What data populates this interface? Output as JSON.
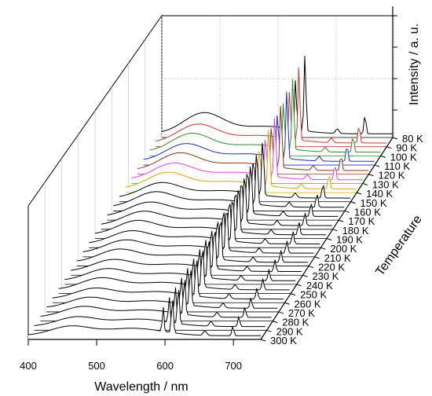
{
  "chart_data": {
    "type": "line",
    "subtype": "waterfall-3d",
    "xlabel": "Wavelength / nm",
    "ylabel": "Temperature",
    "zlabel": "Intensity / a. u.",
    "x_ticks": [
      400,
      500,
      600,
      700
    ],
    "xlim": [
      400,
      740
    ],
    "grid": true,
    "series": [
      {
        "name": "80 K",
        "color": "#000000",
        "values": [
          0.05,
          0.18,
          0.45,
          0.92,
          0.6
        ]
      },
      {
        "name": "90 K",
        "color": "#c0392b",
        "values": [
          0.05,
          0.16,
          0.4,
          0.9,
          0.55
        ]
      },
      {
        "name": "100 K",
        "color": "#2e8b2e",
        "values": [
          0.05,
          0.16,
          0.38,
          0.88,
          0.52
        ]
      },
      {
        "name": "110 K",
        "color": "#1a2fbf",
        "values": [
          0.05,
          0.15,
          0.36,
          0.85,
          0.5
        ]
      },
      {
        "name": "120 K",
        "color": "#7b3a1a",
        "values": [
          0.05,
          0.15,
          0.34,
          0.8,
          0.48
        ]
      },
      {
        "name": "130 K",
        "color": "#e040e0",
        "values": [
          0.05,
          0.14,
          0.33,
          0.78,
          0.47
        ]
      },
      {
        "name": "140 K",
        "color": "#d9a100",
        "values": [
          0.05,
          0.14,
          0.32,
          0.75,
          0.46
        ]
      },
      {
        "name": "150 K",
        "color": "#000000",
        "values": [
          0.05,
          0.13,
          0.3,
          0.72,
          0.44
        ]
      },
      {
        "name": "160 K",
        "color": "#000000",
        "values": [
          0.05,
          0.13,
          0.29,
          0.7,
          0.43
        ]
      },
      {
        "name": "170 K",
        "color": "#000000",
        "values": [
          0.05,
          0.12,
          0.28,
          0.68,
          0.42
        ]
      },
      {
        "name": "180 K",
        "color": "#000000",
        "values": [
          0.05,
          0.12,
          0.27,
          0.66,
          0.41
        ]
      },
      {
        "name": "190 K",
        "color": "#000000",
        "values": [
          0.05,
          0.12,
          0.26,
          0.64,
          0.4
        ]
      },
      {
        "name": "200 K",
        "color": "#000000",
        "values": [
          0.05,
          0.11,
          0.25,
          0.62,
          0.39
        ]
      },
      {
        "name": "210 K",
        "color": "#000000",
        "values": [
          0.05,
          0.11,
          0.24,
          0.6,
          0.38
        ]
      },
      {
        "name": "220 K",
        "color": "#000000",
        "values": [
          0.05,
          0.11,
          0.23,
          0.58,
          0.37
        ]
      },
      {
        "name": "230 K",
        "color": "#000000",
        "values": [
          0.05,
          0.1,
          0.22,
          0.56,
          0.36
        ]
      },
      {
        "name": "240 K",
        "color": "#000000",
        "values": [
          0.05,
          0.1,
          0.21,
          0.54,
          0.35
        ]
      },
      {
        "name": "250 K",
        "color": "#000000",
        "values": [
          0.05,
          0.1,
          0.2,
          0.52,
          0.34
        ]
      },
      {
        "name": "260 K",
        "color": "#000000",
        "values": [
          0.05,
          0.09,
          0.19,
          0.5,
          0.33
        ]
      },
      {
        "name": "270 K",
        "color": "#000000",
        "values": [
          0.05,
          0.09,
          0.18,
          0.48,
          0.32
        ]
      },
      {
        "name": "280 K",
        "color": "#000000",
        "values": [
          0.05,
          0.09,
          0.17,
          0.46,
          0.31
        ]
      },
      {
        "name": "290 K",
        "color": "#000000",
        "values": [
          0.05,
          0.08,
          0.16,
          0.44,
          0.3
        ]
      },
      {
        "name": "300 K",
        "color": "#000000",
        "values": [
          0.05,
          0.08,
          0.15,
          0.42,
          0.29
        ]
      }
    ]
  }
}
